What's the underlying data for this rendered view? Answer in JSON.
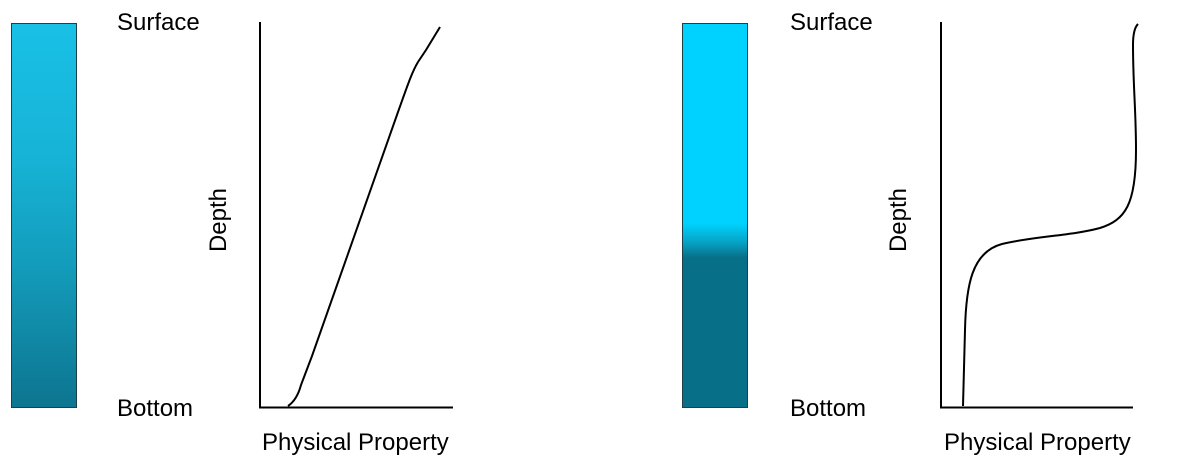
{
  "diagrams": [
    {
      "surface_label": "Surface",
      "bottom_label": "Bottom",
      "xlabel": "Physical Property",
      "ylabel": "Depth",
      "column_colors": [
        "#19c0e6",
        "#0d7590"
      ]
    },
    {
      "surface_label": "Surface",
      "bottom_label": "Bottom",
      "xlabel": "Physical Property",
      "ylabel": "Depth",
      "column_colors": [
        "#00d2ff",
        "#086f88"
      ]
    }
  ]
}
